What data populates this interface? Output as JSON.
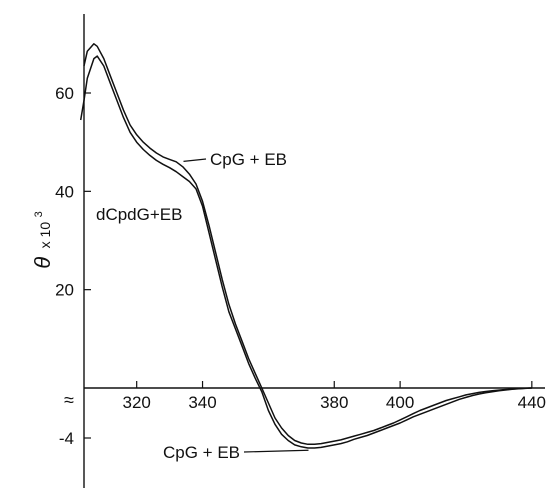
{
  "chart_data": {
    "type": "line",
    "title": "",
    "xlabel": "",
    "ylabel": "θ x 10³",
    "ylabel_main": "θ",
    "ylabel_times": "x 10",
    "ylabel_exp": "3",
    "x_ticks": [
      320,
      340,
      380,
      400,
      440
    ],
    "x_tick_labels": [
      "320",
      "340",
      "380",
      "400",
      "440"
    ],
    "y_ticks": [
      60,
      40,
      20,
      -4
    ],
    "y_tick_labels": [
      "60",
      "40",
      "20",
      "-4"
    ],
    "y_break_symbol": "≈",
    "xlim": [
      304,
      444
    ],
    "y_upper_range": [
      0,
      70
    ],
    "y_lower_range": [
      -5.5,
      0
    ],
    "grid": false,
    "legend": "none",
    "series": [
      {
        "name": "CpG + EB",
        "x": [
          304,
          305,
          307,
          308,
          310,
          312,
          314,
          316,
          318,
          320,
          322,
          324,
          326,
          328,
          330,
          332,
          334,
          336,
          338,
          340,
          342,
          344,
          346,
          348,
          350,
          352,
          354,
          356,
          358,
          360,
          362,
          364,
          366,
          368,
          370,
          372,
          374,
          376,
          378,
          380,
          382,
          384,
          386,
          388,
          390,
          392,
          394,
          396,
          398,
          400,
          402,
          404,
          406,
          408,
          410,
          412,
          414,
          416,
          418,
          420,
          422,
          424,
          426,
          428,
          430,
          432,
          434,
          436,
          438,
          440
        ],
        "y": [
          65.5,
          68.5,
          70,
          69.5,
          67,
          63.5,
          60,
          56.5,
          53.5,
          51.5,
          50,
          48.8,
          47.8,
          47,
          46.5,
          46,
          45,
          43.5,
          41.5,
          38,
          33,
          27.5,
          22,
          17,
          13,
          9.5,
          6,
          3,
          0,
          -1.2,
          -2.4,
          -3.2,
          -3.8,
          -4.2,
          -4.4,
          -4.5,
          -4.5,
          -4.45,
          -4.35,
          -4.25,
          -4.15,
          -4.0,
          -3.85,
          -3.7,
          -3.55,
          -3.4,
          -3.2,
          -3.0,
          -2.8,
          -2.55,
          -2.3,
          -2.05,
          -1.8,
          -1.6,
          -1.4,
          -1.2,
          -1.0,
          -0.85,
          -0.7,
          -0.55,
          -0.45,
          -0.35,
          -0.28,
          -0.22,
          -0.17,
          -0.12,
          -0.08,
          -0.05,
          -0.02,
          0
        ]
      },
      {
        "name": "dCpdG+EB",
        "x": [
          303,
          304,
          305,
          307,
          308,
          310,
          312,
          314,
          316,
          318,
          320,
          322,
          324,
          326,
          328,
          330,
          332,
          334,
          336,
          338,
          340,
          342,
          344,
          346,
          348,
          350,
          352,
          354,
          356,
          358,
          360,
          362,
          364,
          366,
          368,
          370,
          372,
          374,
          376,
          378,
          380,
          382,
          384,
          386,
          388,
          390,
          392,
          394,
          396,
          398,
          400,
          402,
          404,
          406,
          408,
          410,
          412,
          414,
          416,
          418,
          420,
          422,
          424,
          426,
          428,
          430,
          432,
          434,
          436,
          438,
          440
        ],
        "y": [
          54.5,
          58.5,
          63,
          67,
          67.5,
          65.5,
          62,
          58.5,
          55,
          52,
          50,
          48.5,
          47.3,
          46.3,
          45.5,
          44.8,
          44,
          43,
          42,
          40.5,
          37,
          31.5,
          26,
          20.5,
          15.5,
          12,
          8.5,
          5,
          2,
          -0.3,
          -1.8,
          -2.9,
          -3.7,
          -4.2,
          -4.55,
          -4.7,
          -4.8,
          -4.8,
          -4.75,
          -4.65,
          -4.55,
          -4.45,
          -4.3,
          -4.1,
          -3.95,
          -3.8,
          -3.6,
          -3.4,
          -3.2,
          -3.0,
          -2.8,
          -2.55,
          -2.3,
          -2.1,
          -1.9,
          -1.7,
          -1.5,
          -1.3,
          -1.1,
          -0.9,
          -0.75,
          -0.6,
          -0.48,
          -0.38,
          -0.3,
          -0.22,
          -0.16,
          -0.1,
          -0.06,
          -0.03,
          0
        ]
      }
    ],
    "annotations": [
      {
        "text": "CpG + EB",
        "x": 333,
        "y": 46.5,
        "position": "upper"
      },
      {
        "text": "dCpdG+EB",
        "x": 338,
        "y": 40.5,
        "position": "upper"
      },
      {
        "text": "CpG + EB",
        "x": 374,
        "y": -4.5,
        "position": "lower"
      }
    ]
  }
}
